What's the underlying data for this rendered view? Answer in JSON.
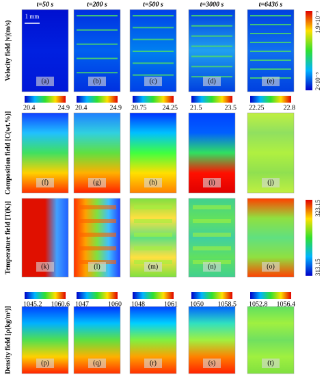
{
  "columns": [
    {
      "time": "t=50 s"
    },
    {
      "time": "t=200 s"
    },
    {
      "time": "t=500 s"
    },
    {
      "time": "t=3000 s"
    },
    {
      "time": "t=6436 s"
    }
  ],
  "scale_bar": "1 mm",
  "rows": [
    {
      "label": "Velocity field |v|(m/s)",
      "panels": [
        "(a)",
        "(b)",
        "(c)",
        "(d)",
        "(e)"
      ],
      "colorbar": {
        "max": "1.9×10⁻³",
        "min": "2×10⁻⁵"
      }
    },
    {
      "label": "Composition field [C(wt.%)]",
      "panels": [
        "(f)",
        "(g)",
        "(h)",
        "(i)",
        "(j)"
      ],
      "colorbars": [
        {
          "min": "20.4",
          "max": "24.9"
        },
        {
          "min": "20.4",
          "max": "24.9"
        },
        {
          "min": "20.75",
          "max": "24.25"
        },
        {
          "min": "21.5",
          "max": "23.5"
        },
        {
          "min": "22.25",
          "max": "22.8"
        }
      ]
    },
    {
      "label": "Temperature field [T(K)]",
      "panels": [
        "(k)",
        "(l)",
        "(m)",
        "(n)",
        "(o)"
      ],
      "colorbar": {
        "max": "323.15",
        "min": "313.15"
      }
    },
    {
      "label": "Density field [ρ(kg/m³)]",
      "panels": [
        "(p)",
        "(q)",
        "(r)",
        "(s)",
        "(t)"
      ],
      "colorbars": [
        {
          "min": "1045.2",
          "max": "1060.6"
        },
        {
          "min": "1047",
          "max": "1060"
        },
        {
          "min": "1048",
          "max": "1061"
        },
        {
          "min": "1050",
          "max": "1058.5"
        },
        {
          "min": "1052.8",
          "max": "1056.4"
        }
      ]
    }
  ]
}
